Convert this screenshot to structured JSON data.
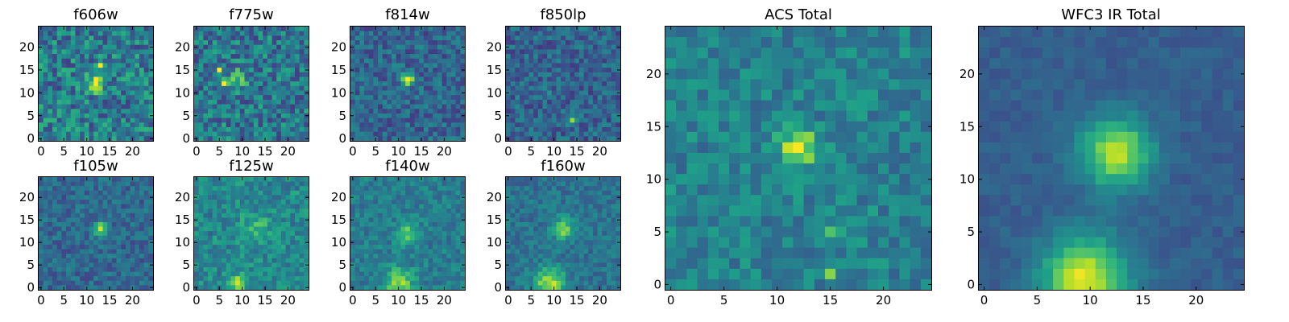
{
  "figure_title": "",
  "colormap": {
    "name": "viridis",
    "stops": [
      "#440154",
      "#482878",
      "#3e4989",
      "#31688e",
      "#26828e",
      "#1f9e89",
      "#35b779",
      "#6ece58",
      "#b5de2b",
      "#fde725"
    ]
  },
  "chart_data": [
    {
      "type": "heatmap",
      "title": "f606w",
      "grid_size": 25,
      "xlim": [
        0,
        24
      ],
      "ylim": [
        0,
        24
      ],
      "xticks": [
        0,
        5,
        10,
        15,
        20
      ],
      "yticks": [
        0,
        5,
        10,
        15,
        20
      ],
      "tick_labels": [
        "0",
        "5",
        "10",
        "15",
        "20"
      ],
      "noise": 0.38,
      "base": 0.42,
      "seed": 11,
      "features": [
        {
          "x": 12,
          "y": 12,
          "sigma": 1.3,
          "amp": 0.5
        },
        {
          "x": 13,
          "y": 16,
          "sigma": 0.6,
          "amp": 0.4
        }
      ]
    },
    {
      "type": "heatmap",
      "title": "f775w",
      "grid_size": 25,
      "xlim": [
        0,
        24
      ],
      "ylim": [
        0,
        24
      ],
      "xticks": [
        0,
        5,
        10,
        15,
        20
      ],
      "yticks": [
        0,
        5,
        10,
        15,
        20
      ],
      "tick_labels": [
        "0",
        "5",
        "10",
        "15",
        "20"
      ],
      "noise": 0.36,
      "base": 0.4,
      "seed": 23,
      "features": [
        {
          "x": 9,
          "y": 13,
          "sigma": 1.4,
          "amp": 0.35
        },
        {
          "x": 6,
          "y": 12,
          "sigma": 0.6,
          "amp": 0.5
        },
        {
          "x": 5,
          "y": 15,
          "sigma": 0.6,
          "amp": 0.45
        }
      ]
    },
    {
      "type": "heatmap",
      "title": "f814w",
      "grid_size": 25,
      "xlim": [
        0,
        24
      ],
      "ylim": [
        0,
        24
      ],
      "xticks": [
        0,
        5,
        10,
        15,
        20
      ],
      "yticks": [
        0,
        5,
        10,
        15,
        20
      ],
      "tick_labels": [
        "0",
        "5",
        "10",
        "15",
        "20"
      ],
      "noise": 0.26,
      "base": 0.33,
      "seed": 37,
      "features": [
        {
          "x": 12,
          "y": 13,
          "sigma": 1.0,
          "amp": 0.62
        }
      ]
    },
    {
      "type": "heatmap",
      "title": "f850lp",
      "grid_size": 25,
      "xlim": [
        0,
        24
      ],
      "ylim": [
        0,
        24
      ],
      "xticks": [
        0,
        5,
        10,
        15,
        20
      ],
      "yticks": [
        0,
        5,
        10,
        15,
        20
      ],
      "tick_labels": [
        "0",
        "5",
        "10",
        "15",
        "20"
      ],
      "noise": 0.26,
      "base": 0.32,
      "seed": 41,
      "features": [
        {
          "x": 14,
          "y": 4,
          "sigma": 0.7,
          "amp": 0.6
        },
        {
          "x": 9,
          "y": 10,
          "sigma": 0.6,
          "amp": 0.35
        }
      ]
    },
    {
      "type": "heatmap",
      "title": "ACS Total",
      "grid_size": 25,
      "xlim": [
        0,
        24
      ],
      "ylim": [
        0,
        24
      ],
      "xticks": [
        0,
        5,
        10,
        15,
        20
      ],
      "yticks": [
        0,
        5,
        10,
        15,
        20
      ],
      "tick_labels": [
        "0",
        "5",
        "10",
        "15",
        "20"
      ],
      "noise": 0.22,
      "base": 0.44,
      "seed": 53,
      "features": [
        {
          "x": 12,
          "y": 13,
          "sigma": 1.2,
          "amp": 0.52
        },
        {
          "x": 15,
          "y": 5,
          "sigma": 0.7,
          "amp": 0.25
        },
        {
          "x": 15,
          "y": 1,
          "sigma": 0.5,
          "amp": 0.4
        }
      ]
    },
    {
      "type": "heatmap",
      "title": "f105w",
      "grid_size": 25,
      "xlim": [
        0,
        24
      ],
      "ylim": [
        0,
        24
      ],
      "xticks": [
        0,
        5,
        10,
        15,
        20
      ],
      "yticks": [
        0,
        5,
        10,
        15,
        20
      ],
      "tick_labels": [
        "0",
        "5",
        "10",
        "15",
        "20"
      ],
      "noise": 0.22,
      "base": 0.34,
      "seed": 61,
      "features": [
        {
          "x": 13,
          "y": 13,
          "sigma": 1.1,
          "amp": 0.55
        }
      ]
    },
    {
      "type": "heatmap",
      "title": "f125w",
      "grid_size": 25,
      "xlim": [
        0,
        24
      ],
      "ylim": [
        0,
        24
      ],
      "xticks": [
        0,
        5,
        10,
        15,
        20
      ],
      "yticks": [
        0,
        5,
        10,
        15,
        20
      ],
      "tick_labels": [
        "0",
        "5",
        "10",
        "15",
        "20"
      ],
      "noise": 0.24,
      "base": 0.46,
      "seed": 73,
      "features": [
        {
          "x": 13,
          "y": 13,
          "sigma": 2.2,
          "amp": 0.22
        },
        {
          "x": 9,
          "y": 1,
          "sigma": 1.4,
          "amp": 0.4
        }
      ]
    },
    {
      "type": "heatmap",
      "title": "f140w",
      "grid_size": 25,
      "xlim": [
        0,
        24
      ],
      "ylim": [
        0,
        24
      ],
      "xticks": [
        0,
        5,
        10,
        15,
        20
      ],
      "yticks": [
        0,
        5,
        10,
        15,
        20
      ],
      "tick_labels": [
        "0",
        "5",
        "10",
        "15",
        "20"
      ],
      "noise": 0.2,
      "base": 0.42,
      "seed": 89,
      "features": [
        {
          "x": 12,
          "y": 12,
          "sigma": 1.8,
          "amp": 0.3
        },
        {
          "x": 10,
          "y": 1,
          "sigma": 2.2,
          "amp": 0.42
        }
      ]
    },
    {
      "type": "heatmap",
      "title": "f160w",
      "grid_size": 25,
      "xlim": [
        0,
        24
      ],
      "ylim": [
        0,
        24
      ],
      "xticks": [
        0,
        5,
        10,
        15,
        20
      ],
      "yticks": [
        0,
        5,
        10,
        15,
        20
      ],
      "tick_labels": [
        "0",
        "5",
        "10",
        "15",
        "20"
      ],
      "noise": 0.18,
      "base": 0.38,
      "seed": 97,
      "features": [
        {
          "x": 12,
          "y": 13,
          "sigma": 1.6,
          "amp": 0.45
        },
        {
          "x": 9,
          "y": 1,
          "sigma": 2.4,
          "amp": 0.5
        }
      ]
    },
    {
      "type": "heatmap",
      "title": "WFC3 IR Total",
      "grid_size": 25,
      "xlim": [
        0,
        24
      ],
      "ylim": [
        0,
        24
      ],
      "xticks": [
        0,
        5,
        10,
        15,
        20
      ],
      "yticks": [
        0,
        5,
        10,
        15,
        20
      ],
      "tick_labels": [
        "0",
        "5",
        "10",
        "15",
        "20"
      ],
      "noise": 0.08,
      "base": 0.3,
      "seed": 101,
      "features": [
        {
          "x": 12.5,
          "y": 12.5,
          "sigma": 2.3,
          "amp": 0.6
        },
        {
          "x": 9.5,
          "y": 0.5,
          "sigma": 2.8,
          "amp": 0.65
        }
      ]
    }
  ]
}
